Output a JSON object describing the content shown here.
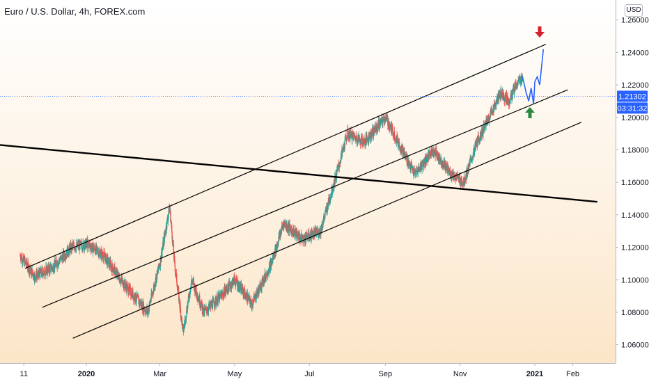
{
  "header": {
    "title": "Euro / U.S. Dollar, 4h, FOREX.com",
    "currency_button": "USD"
  },
  "chart_data": {
    "type": "line",
    "title": "Euro / U.S. Dollar, 4h, FOREX.com",
    "xlabel": "",
    "ylabel": "",
    "grid": false,
    "ylim": [
      1.05,
      1.265
    ],
    "y_ticks": [
      "1.26000",
      "1.24000",
      "1.22000",
      "1.20000",
      "1.18000",
      "1.16000",
      "1.14000",
      "1.12000",
      "1.10000",
      "1.08000",
      "1.06000"
    ],
    "x_ticks": [
      "11",
      "2020",
      "Mar",
      "May",
      "Jul",
      "Sep",
      "Nov",
      "2021",
      "Feb"
    ],
    "current_price": "1.21302",
    "countdown": "03:31:32",
    "price_series": {
      "x": [
        "2019-11-08",
        "2019-11-20",
        "2019-12-05",
        "2019-12-20",
        "2020-01-02",
        "2020-01-15",
        "2020-01-31",
        "2020-02-20",
        "2020-03-01",
        "2020-03-09",
        "2020-03-13",
        "2020-03-20",
        "2020-03-27",
        "2020-04-06",
        "2020-04-20",
        "2020-05-01",
        "2020-05-15",
        "2020-05-31",
        "2020-06-10",
        "2020-06-25",
        "2020-07-10",
        "2020-07-25",
        "2020-08-01",
        "2020-08-15",
        "2020-09-01",
        "2020-09-25",
        "2020-10-10",
        "2020-10-25",
        "2020-11-04",
        "2020-11-15",
        "2020-12-01",
        "2020-12-04",
        "2020-12-11",
        "2020-12-17",
        "2020-12-22"
      ],
      "values": [
        1.115,
        1.102,
        1.108,
        1.12,
        1.122,
        1.115,
        1.098,
        1.08,
        1.11,
        1.145,
        1.11,
        1.068,
        1.1,
        1.08,
        1.09,
        1.1,
        1.085,
        1.11,
        1.135,
        1.125,
        1.13,
        1.17,
        1.19,
        1.185,
        1.2,
        1.165,
        1.18,
        1.165,
        1.16,
        1.185,
        1.21,
        1.215,
        1.21,
        1.22,
        1.225
      ]
    },
    "projection": {
      "x": [
        "2020-12-22",
        "2020-12-25",
        "2020-12-27",
        "2020-12-29",
        "2020-12-31",
        "2021-01-01",
        "2021-01-03",
        "2021-01-05",
        "2021-01-08"
      ],
      "values": [
        1.225,
        1.215,
        1.21,
        1.218,
        1.208,
        1.222,
        1.225,
        1.22,
        1.242
      ]
    },
    "channel_lines": [
      {
        "x": [
          "2019-11-12",
          "2021-01-10"
        ],
        "values": [
          1.107,
          1.245
        ]
      },
      {
        "x": [
          "2019-11-26",
          "2021-01-28"
        ],
        "values": [
          1.083,
          1.217
        ]
      },
      {
        "x": [
          "2019-12-21",
          "2021-02-08"
        ],
        "values": [
          1.064,
          1.197
        ]
      }
    ],
    "trend_line": {
      "x": [
        "2019-10-20",
        "2021-02-21"
      ],
      "values": [
        1.183,
        1.148
      ]
    },
    "annotations": {
      "down_arrow_color": "#d6202d",
      "up_arrow_color": "#2a8a3e"
    },
    "colors": {
      "projection": "#2962ff",
      "current_price_badge": "#2962ff",
      "countdown_badge": "#2962ff",
      "up_candle": "#26a69a",
      "down_candle": "#ef5350",
      "trend": "#000000"
    }
  }
}
